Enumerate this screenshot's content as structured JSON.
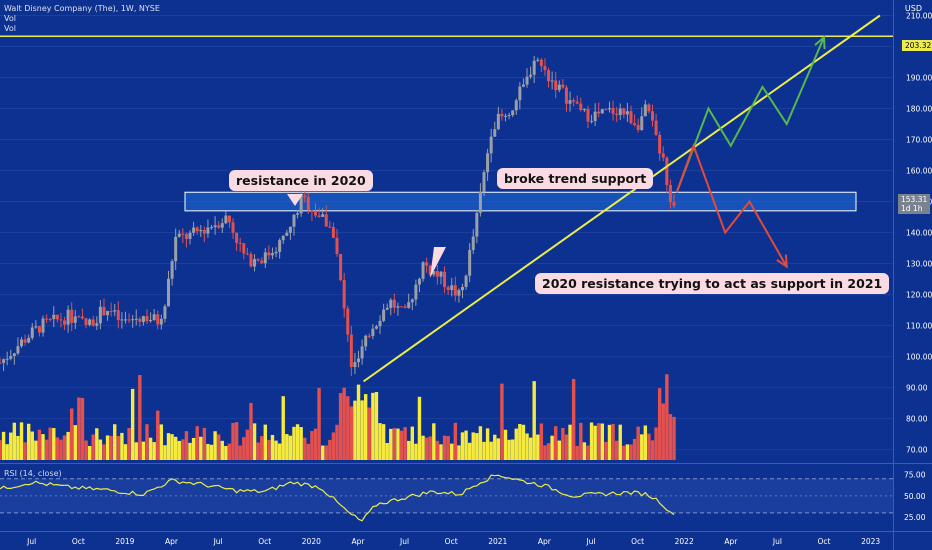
{
  "header": {
    "symbol": "Walt Disney Company (The), 1W, NYSE",
    "vol1": "Vol",
    "vol2": "Vol",
    "currency": "USD"
  },
  "price_tags": {
    "resistance": "203.32",
    "last": "153.31",
    "countdown": "1d 1h"
  },
  "annotations": {
    "resistance_2020": "resistance in 2020",
    "broke_trend": "broke trend support",
    "support_2021": "2020 resistance trying to act as support in 2021"
  },
  "rsi": {
    "label": "RSI (14, close)",
    "ticks": [
      "75.00",
      "50.00",
      "25.00"
    ]
  },
  "colors": {
    "background": "#0d3191",
    "up": "#9aa0a6",
    "down": "#e2504f",
    "volume_up": "#f5ea3d",
    "line": "#ecec4a",
    "zone": "#1f6ed9",
    "arrow_green": "#56b84e",
    "arrow_red": "#e24a3b",
    "callout_bg": "#fadbe3"
  },
  "chart_data": {
    "type": "candlestick",
    "x_ticks": [
      "Jul",
      "Oct",
      "2019",
      "Apr",
      "Jul",
      "Oct",
      "2020",
      "Apr",
      "Jul",
      "Oct",
      "2021",
      "Apr",
      "Jul",
      "Oct",
      "2022",
      "Apr",
      "Jul",
      "Oct",
      "2023"
    ],
    "y_ticks": [
      210,
      200,
      190,
      180,
      170,
      160,
      150,
      140,
      130,
      120,
      110,
      100,
      90,
      80,
      70
    ],
    "ylim": [
      66,
      215
    ],
    "price_path": [
      [
        2018.33,
        98
      ],
      [
        2018.45,
        105
      ],
      [
        2018.55,
        110
      ],
      [
        2018.7,
        113
      ],
      [
        2018.8,
        110
      ],
      [
        2018.9,
        116
      ],
      [
        2018.98,
        111
      ],
      [
        2019.1,
        113
      ],
      [
        2019.2,
        111
      ],
      [
        2019.27,
        138
      ],
      [
        2019.35,
        139
      ],
      [
        2019.45,
        142
      ],
      [
        2019.55,
        145
      ],
      [
        2019.6,
        138
      ],
      [
        2019.65,
        131
      ],
      [
        2019.75,
        132
      ],
      [
        2019.87,
        139
      ],
      [
        2019.95,
        151
      ],
      [
        2020.05,
        145
      ],
      [
        2020.12,
        140
      ],
      [
        2020.17,
        118
      ],
      [
        2020.22,
        95
      ],
      [
        2020.26,
        100
      ],
      [
        2020.33,
        110
      ],
      [
        2020.42,
        118
      ],
      [
        2020.5,
        113
      ],
      [
        2020.6,
        130
      ],
      [
        2020.7,
        125
      ],
      [
        2020.8,
        119
      ],
      [
        2020.88,
        142
      ],
      [
        2020.97,
        175
      ],
      [
        2021.05,
        178
      ],
      [
        2021.15,
        188
      ],
      [
        2021.2,
        197
      ],
      [
        2021.25,
        192
      ],
      [
        2021.35,
        185
      ],
      [
        2021.45,
        178
      ],
      [
        2021.55,
        178
      ],
      [
        2021.65,
        180
      ],
      [
        2021.75,
        175
      ],
      [
        2021.8,
        180
      ],
      [
        2021.88,
        165
      ],
      [
        2021.93,
        147
      ],
      [
        2021.96,
        153
      ]
    ],
    "resistance_level": 203.32,
    "support_zone": [
      147,
      153
    ],
    "trendline": [
      [
        2020.28,
        92
      ],
      [
        2023.05,
        210
      ]
    ],
    "projection_up": [
      [
        2021.96,
        153
      ],
      [
        2022.13,
        180
      ],
      [
        2022.25,
        168
      ],
      [
        2022.42,
        187
      ],
      [
        2022.55,
        175
      ],
      [
        2022.75,
        203
      ]
    ],
    "projection_down": [
      [
        2021.96,
        153
      ],
      [
        2022.05,
        168
      ],
      [
        2022.22,
        140
      ],
      [
        2022.35,
        150
      ],
      [
        2022.55,
        129
      ]
    ],
    "rsi_ylim": [
      10,
      85
    ],
    "rsi_levels": [
      70,
      30
    ],
    "rsi_path": [
      [
        2018.33,
        58
      ],
      [
        2018.5,
        66
      ],
      [
        2018.7,
        60
      ],
      [
        2018.9,
        57
      ],
      [
        2019.1,
        52
      ],
      [
        2019.25,
        68
      ],
      [
        2019.4,
        64
      ],
      [
        2019.6,
        56
      ],
      [
        2019.75,
        55
      ],
      [
        2019.9,
        66
      ],
      [
        2020.05,
        60
      ],
      [
        2020.2,
        30
      ],
      [
        2020.27,
        20
      ],
      [
        2020.35,
        40
      ],
      [
        2020.5,
        48
      ],
      [
        2020.65,
        55
      ],
      [
        2020.8,
        52
      ],
      [
        2020.9,
        66
      ],
      [
        2021.0,
        75
      ],
      [
        2021.12,
        68
      ],
      [
        2021.25,
        62
      ],
      [
        2021.4,
        50
      ],
      [
        2021.55,
        52
      ],
      [
        2021.7,
        54
      ],
      [
        2021.8,
        52
      ],
      [
        2021.88,
        42
      ],
      [
        2021.93,
        28
      ],
      [
        2021.96,
        33
      ]
    ]
  }
}
